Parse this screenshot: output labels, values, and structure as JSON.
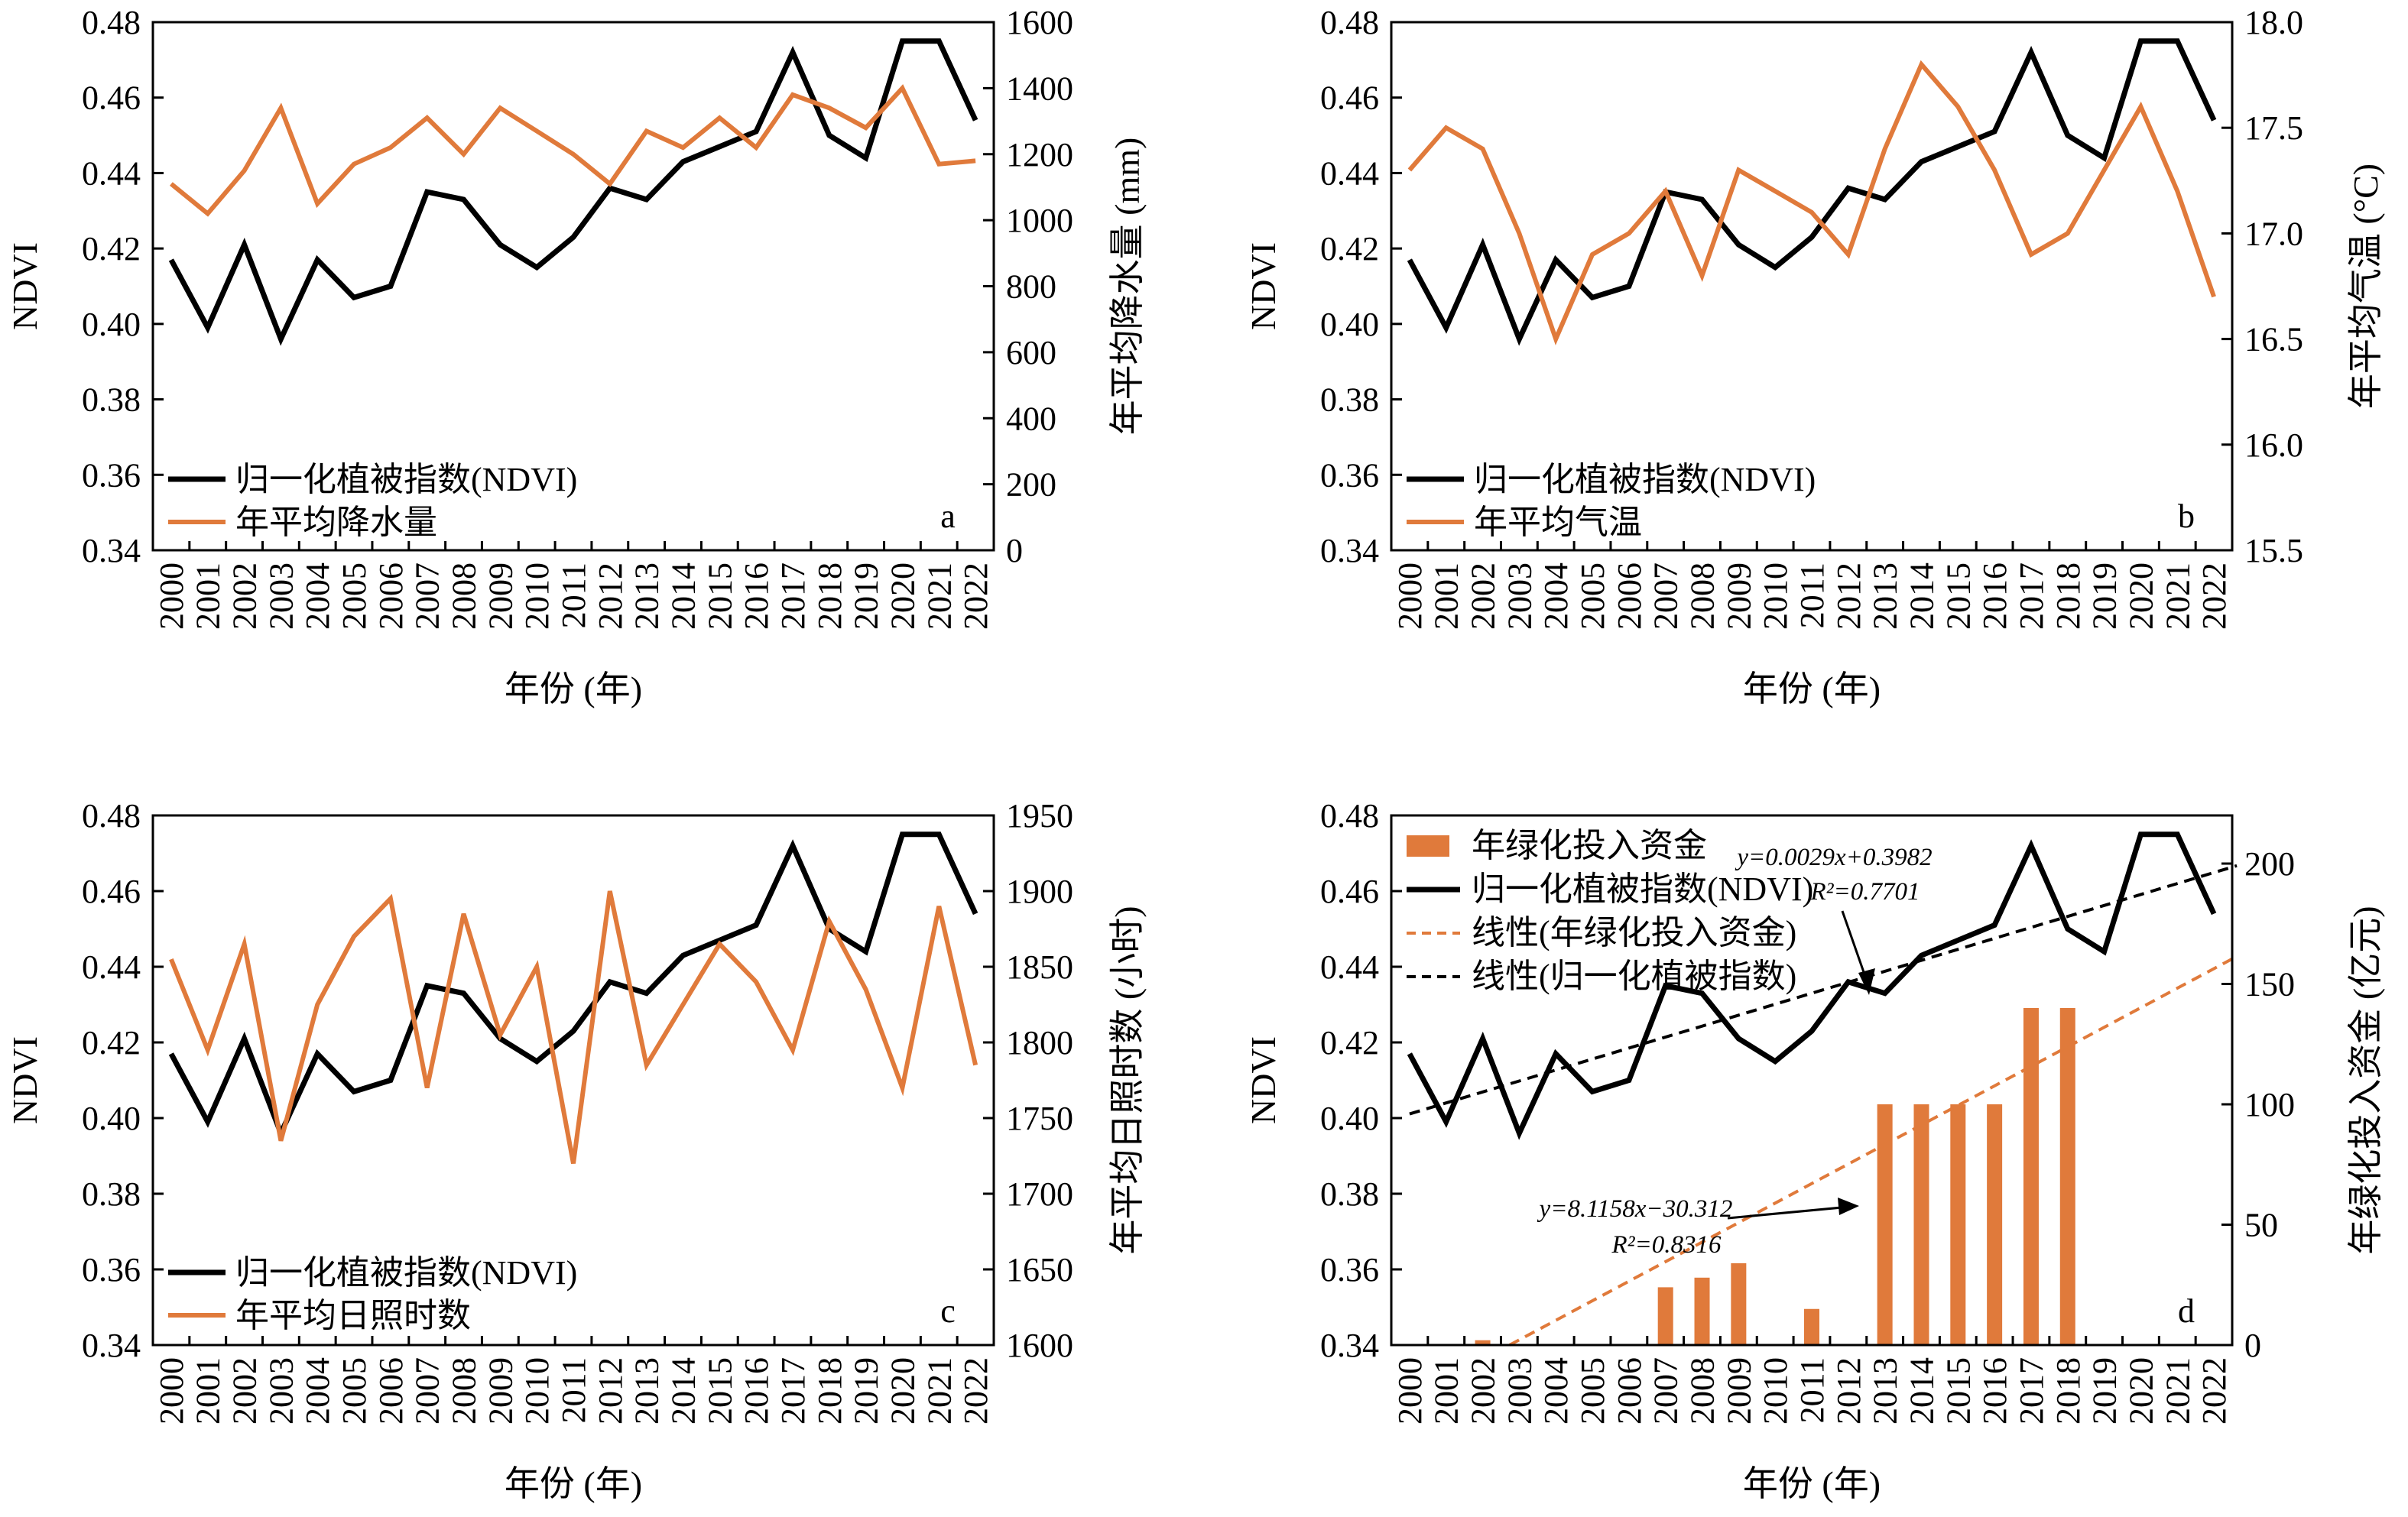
{
  "colors": {
    "ndvi": "#000000",
    "climate": "#E07A3B",
    "bar": "#E07A3B",
    "trend_ndvi": "#000000",
    "trend_fund": "#E07A3B"
  },
  "chart_data": [
    {
      "type": "line",
      "panel": "a",
      "x": [
        "2000",
        "2001",
        "2002",
        "2003",
        "2004",
        "2005",
        "2006",
        "2007",
        "2008",
        "2009",
        "2010",
        "2011",
        "2012",
        "2013",
        "2014",
        "2015",
        "2016",
        "2017",
        "2018",
        "2019",
        "2020",
        "2021",
        "2022"
      ],
      "xlabel": "年份 (年)",
      "ylabel": "NDVI",
      "y2label": "年平均降水量 (mm)",
      "ylim": [
        0.34,
        0.48
      ],
      "y2lim": [
        0,
        1600
      ],
      "yticks": [
        "0.34",
        "0.36",
        "0.38",
        "0.40",
        "0.42",
        "0.44",
        "0.46",
        "0.48"
      ],
      "y2ticks": [
        "0",
        "200",
        "400",
        "600",
        "800",
        "1000",
        "1200",
        "1400",
        "1600"
      ],
      "series": [
        {
          "name": "归一化植被指数(NDVI)",
          "axis": "left",
          "values": [
            0.417,
            0.399,
            0.421,
            0.396,
            0.417,
            0.407,
            0.41,
            0.435,
            0.433,
            0.421,
            0.415,
            0.423,
            0.436,
            0.433,
            0.443,
            0.447,
            0.451,
            0.472,
            0.45,
            0.444,
            0.475,
            0.475,
            0.454
          ]
        },
        {
          "name": "年平均降水量",
          "axis": "right",
          "values": [
            1110,
            1020,
            1150,
            1340,
            1050,
            1170,
            1220,
            1310,
            1200,
            1340,
            1270,
            1200,
            1110,
            1270,
            1220,
            1310,
            1220,
            1380,
            1340,
            1280,
            1400,
            1170,
            1180
          ]
        }
      ],
      "legend": "bottom-left",
      "grid": false
    },
    {
      "type": "line",
      "panel": "b",
      "x": [
        "2000",
        "2001",
        "2002",
        "2003",
        "2004",
        "2005",
        "2006",
        "2007",
        "2008",
        "2009",
        "2010",
        "2011",
        "2012",
        "2013",
        "2014",
        "2015",
        "2016",
        "2017",
        "2018",
        "2019",
        "2020",
        "2021",
        "2022"
      ],
      "xlabel": "年份 (年)",
      "ylabel": "NDVI",
      "y2label": "年平均气温 (°C)",
      "ylim": [
        0.34,
        0.48
      ],
      "y2lim": [
        15.5,
        18.0
      ],
      "yticks": [
        "0.34",
        "0.36",
        "0.38",
        "0.40",
        "0.42",
        "0.44",
        "0.46",
        "0.48"
      ],
      "y2ticks": [
        "15.5",
        "16.0",
        "16.5",
        "17.0",
        "17.5",
        "18.0"
      ],
      "series": [
        {
          "name": "归一化植被指数(NDVI)",
          "axis": "left",
          "values": [
            0.417,
            0.399,
            0.421,
            0.396,
            0.417,
            0.407,
            0.41,
            0.435,
            0.433,
            0.421,
            0.415,
            0.423,
            0.436,
            0.433,
            0.443,
            0.447,
            0.451,
            0.472,
            0.45,
            0.444,
            0.475,
            0.475,
            0.454
          ]
        },
        {
          "name": "年平均气温",
          "axis": "right",
          "values": [
            17.3,
            17.5,
            17.4,
            17.0,
            16.5,
            16.9,
            17.0,
            17.2,
            16.8,
            17.3,
            17.2,
            17.1,
            16.9,
            17.4,
            17.8,
            17.6,
            17.3,
            16.9,
            17.0,
            17.3,
            17.6,
            17.2,
            16.7
          ]
        }
      ],
      "legend": "bottom-left",
      "grid": false
    },
    {
      "type": "line",
      "panel": "c",
      "x": [
        "2000",
        "2001",
        "2002",
        "2003",
        "2004",
        "2005",
        "2006",
        "2007",
        "2008",
        "2009",
        "2010",
        "2011",
        "2012",
        "2013",
        "2014",
        "2015",
        "2016",
        "2017",
        "2018",
        "2019",
        "2020",
        "2021",
        "2022"
      ],
      "xlabel": "年份 (年)",
      "ylabel": "NDVI",
      "y2label": "年平均日照时数 (小时)",
      "ylim": [
        0.34,
        0.48
      ],
      "y2lim": [
        1600,
        1950
      ],
      "yticks": [
        "0.34",
        "0.36",
        "0.38",
        "0.40",
        "0.42",
        "0.44",
        "0.46",
        "0.48"
      ],
      "y2ticks": [
        "1600",
        "1650",
        "1700",
        "1750",
        "1800",
        "1850",
        "1900",
        "1950"
      ],
      "series": [
        {
          "name": "归一化植被指数(NDVI)",
          "axis": "left",
          "values": [
            0.417,
            0.399,
            0.421,
            0.396,
            0.417,
            0.407,
            0.41,
            0.435,
            0.433,
            0.421,
            0.415,
            0.423,
            0.436,
            0.433,
            0.443,
            0.447,
            0.451,
            0.472,
            0.45,
            0.444,
            0.475,
            0.475,
            0.454
          ]
        },
        {
          "name": "年平均日照时数",
          "axis": "right",
          "values": [
            1855,
            1795,
            1865,
            1735,
            1825,
            1870,
            1895,
            1770,
            1885,
            1805,
            1850,
            1720,
            1900,
            1785,
            1825,
            1865,
            1840,
            1795,
            1880,
            1835,
            1770,
            1890,
            1785
          ]
        }
      ],
      "legend": "bottom-left",
      "grid": false
    },
    {
      "type": "bar+line",
      "panel": "d",
      "x": [
        "2000",
        "2001",
        "2002",
        "2003",
        "2004",
        "2005",
        "2006",
        "2007",
        "2008",
        "2009",
        "2010",
        "2011",
        "2012",
        "2013",
        "2014",
        "2015",
        "2016",
        "2017",
        "2018",
        "2019",
        "2020",
        "2021",
        "2022"
      ],
      "xlabel": "年份 (年)",
      "ylabel": "NDVI",
      "y2label": "年绿化投入资金 (亿元)",
      "ylim": [
        0.34,
        0.48
      ],
      "y2lim": [
        0,
        220
      ],
      "yticks": [
        "0.34",
        "0.36",
        "0.38",
        "0.40",
        "0.42",
        "0.44",
        "0.46",
        "0.48"
      ],
      "y2ticks": [
        "0",
        "50",
        "100",
        "150",
        "200"
      ],
      "bars": {
        "name": "年绿化投入资金",
        "axis": "right",
        "values": [
          0,
          0,
          2,
          0,
          0,
          0,
          0,
          24,
          28,
          34,
          0,
          15,
          0,
          100,
          100,
          100,
          100,
          140,
          140,
          0,
          0,
          0,
          0
        ]
      },
      "series": [
        {
          "name": "归一化植被指数(NDVI)",
          "axis": "left",
          "values": [
            0.417,
            0.399,
            0.421,
            0.396,
            0.417,
            0.407,
            0.41,
            0.435,
            0.433,
            0.421,
            0.415,
            0.423,
            0.436,
            0.433,
            0.443,
            0.447,
            0.451,
            0.472,
            0.45,
            0.444,
            0.475,
            0.475,
            0.454
          ]
        }
      ],
      "trendlines": [
        {
          "name": "线性(年绿化投入资金)",
          "axis": "right",
          "slope": 8.1158,
          "intercept": -30.312,
          "equation": "y=8.1158x−30.312",
          "r2": "R²=0.8316"
        },
        {
          "name": "线性(归一化植被指数)",
          "axis": "left",
          "slope": 0.0029,
          "intercept": 0.3982,
          "equation": "y=0.0029x+0.3982",
          "r2": "R²=0.7701"
        }
      ],
      "legend": "top-left",
      "grid": false
    }
  ]
}
